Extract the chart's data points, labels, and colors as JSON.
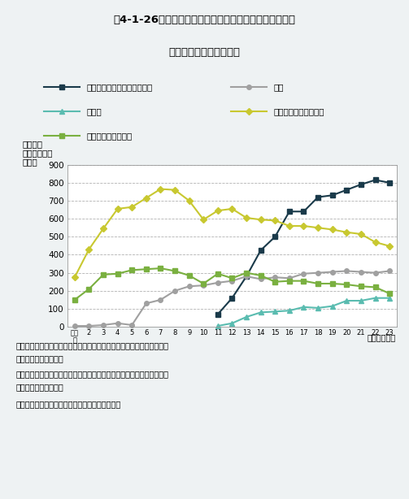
{
  "title_line1": "図4-1-26　地下水の水質汚濁に係る環境基準の超過本数",
  "title_line2": "（継続監視調査）の推移",
  "ylabel_line1": "環境基準",
  "ylabel_line2": "超過井戸本数",
  "ylabel_line3": "（本）",
  "xlabel": "（調査年度）",
  "background_color": "#eef2f3",
  "plot_bg_color": "#ffffff",
  "note1": "注１）硝酸性窒素及び亜硝酸性窒素、ふっ素は、平成１１年に環境基準",
  "note1b": "　　　に追加された。",
  "note2": "注２）このグラフは環境基準超過井戸本数が比較的多かった項目のみ対",
  "note2b": "　　　象としている。",
  "source": "資料：環境省「平成２３年度地下水質測定結果」",
  "years": [
    1,
    2,
    3,
    4,
    5,
    6,
    7,
    8,
    9,
    10,
    11,
    12,
    13,
    14,
    15,
    16,
    17,
    18,
    19,
    20,
    21,
    22,
    23
  ],
  "year_labels": [
    "平成\n元",
    "2",
    "3",
    "4",
    "5",
    "6",
    "7",
    "8",
    "9",
    "10",
    "11",
    "12",
    "13",
    "14",
    "15",
    "16",
    "17",
    "18",
    "19",
    "20",
    "21",
    "22",
    "23"
  ],
  "series": {
    "nitrate": {
      "label": "硝酸性窒素及び亜硝酸性窒素",
      "color": "#1a3a4a",
      "marker": "s",
      "linewidth": 1.5,
      "markersize": 4,
      "data": [
        null,
        null,
        null,
        null,
        null,
        null,
        null,
        null,
        null,
        null,
        70,
        160,
        280,
        425,
        500,
        640,
        640,
        720,
        730,
        760,
        790,
        815,
        800
      ]
    },
    "arsenic": {
      "label": "砒素",
      "color": "#a0a0a0",
      "marker": "o",
      "linewidth": 1.5,
      "markersize": 4,
      "data": [
        5,
        5,
        10,
        20,
        10,
        130,
        150,
        200,
        225,
        230,
        245,
        255,
        280,
        265,
        275,
        270,
        295,
        300,
        305,
        310,
        305,
        300,
        310
      ]
    },
    "fluoride": {
      "label": "ふっ素",
      "color": "#5abcb0",
      "marker": "^",
      "linewidth": 1.5,
      "markersize": 4,
      "data": [
        null,
        null,
        null,
        null,
        null,
        null,
        null,
        null,
        null,
        null,
        5,
        20,
        55,
        80,
        85,
        90,
        110,
        105,
        115,
        145,
        145,
        160,
        160
      ]
    },
    "tetrachloroethylene": {
      "label": "テトラクロロエチレン",
      "color": "#c8c830",
      "marker": "D",
      "linewidth": 1.5,
      "markersize": 4,
      "data": [
        275,
        430,
        545,
        655,
        665,
        715,
        765,
        760,
        700,
        595,
        645,
        655,
        605,
        595,
        590,
        560,
        560,
        550,
        540,
        525,
        515,
        470,
        448
      ]
    },
    "trichloroethylene": {
      "label": "トリクロロエチレン",
      "color": "#7ab040",
      "marker": "s",
      "linewidth": 1.5,
      "markersize": 4,
      "data": [
        150,
        210,
        290,
        295,
        315,
        320,
        325,
        310,
        285,
        240,
        295,
        270,
        300,
        285,
        250,
        255,
        255,
        240,
        240,
        235,
        225,
        220,
        185
      ]
    }
  },
  "ylim": [
    0,
    900
  ],
  "yticks": [
    0,
    100,
    200,
    300,
    400,
    500,
    600,
    700,
    800,
    900
  ]
}
